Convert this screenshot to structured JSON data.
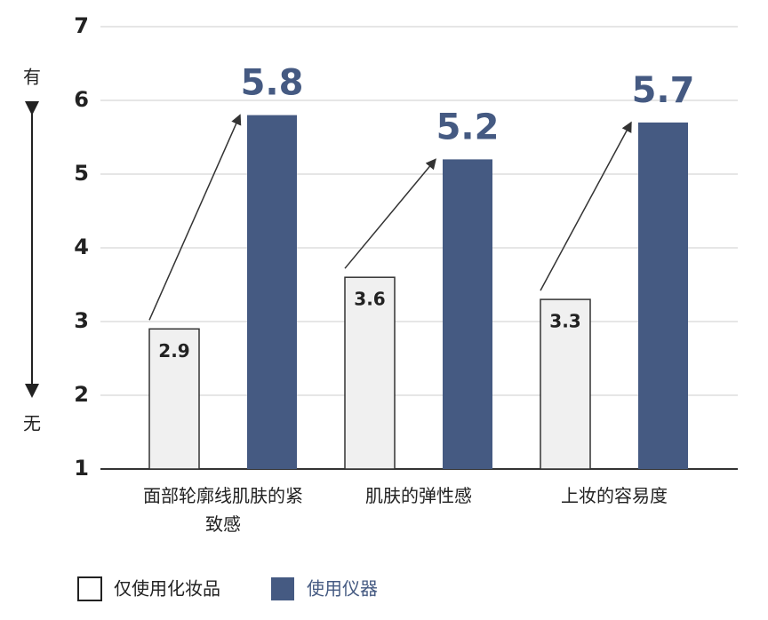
{
  "chart_data": {
    "type": "bar",
    "categories": [
      "面部轮廓线肌肤的紧致感",
      "肌肤的弹性感",
      "上妆的容易度"
    ],
    "series": [
      {
        "name": "仅使用化妆品",
        "color": "#f0f0f0",
        "values": [
          2.9,
          3.6,
          3.3
        ]
      },
      {
        "name": "使用仪器",
        "color": "#455a82",
        "values": [
          5.8,
          5.2,
          5.7
        ]
      }
    ],
    "ylim": [
      1,
      7
    ],
    "yticks": [
      1,
      2,
      3,
      4,
      5,
      6,
      7
    ],
    "grid": true,
    "y_annotations": {
      "top": "有",
      "bottom": "无"
    }
  }
}
